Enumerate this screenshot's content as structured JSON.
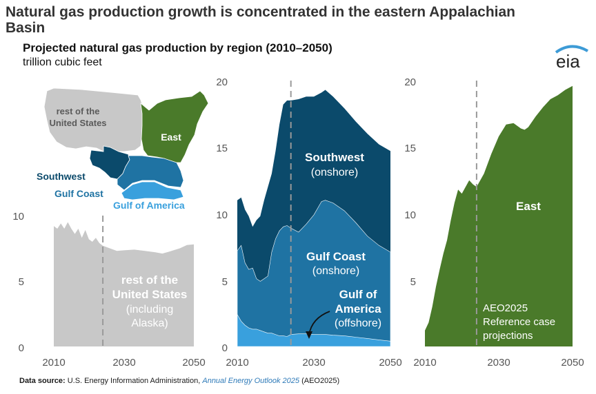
{
  "title": "Natural gas production growth is concentrated in the eastern Appalachian Basin",
  "subtitle": "Projected natural gas production by region (2010–2050)",
  "units": "trillion cubic feet",
  "logo_text": "eia",
  "source": {
    "label": "Data source:",
    "text1": "U.S. Energy Information Administration,",
    "italic": "Annual Energy Outlook 2025",
    "text2": "(AEO2025)"
  },
  "map_labels": {
    "rest": [
      "rest of the",
      "United States"
    ],
    "east": "East",
    "southwest": "Southwest",
    "gulf_coast": "Gulf Coast",
    "gulf_of_america": "Gulf of America"
  },
  "colors": {
    "rest": "#c8c8c8",
    "southwest": "#0b4a6b",
    "gulf_coast": "#1f73a3",
    "gulf_of_america": "#39a0dd",
    "east": "#4a7a2a",
    "dashed": "#999999"
  },
  "chart_data": [
    {
      "type": "area",
      "panel": "rest of United States",
      "x_ticks": [
        "2010",
        "2030",
        "2050"
      ],
      "y_ticks": [
        "0",
        "5",
        "10"
      ],
      "ylim": [
        0,
        10
      ],
      "xlim": [
        2010,
        2050
      ],
      "projection_start": 2024,
      "labels": [
        "rest of the",
        "United States",
        "(including",
        "Alaska)"
      ],
      "series": [
        {
          "key": "rest",
          "x": [
            2010,
            2011,
            2012,
            2013,
            2014,
            2015,
            2016,
            2017,
            2018,
            2019,
            2020,
            2021,
            2022,
            2023,
            2024,
            2026,
            2028,
            2030,
            2033,
            2036,
            2039,
            2041,
            2043,
            2046,
            2048,
            2050
          ],
          "values": [
            9.2,
            9.0,
            9.4,
            9.0,
            9.5,
            9.0,
            8.6,
            9.0,
            8.3,
            8.9,
            8.2,
            8.0,
            8.3,
            7.9,
            7.7,
            7.5,
            7.3,
            7.35,
            7.4,
            7.3,
            7.2,
            7.1,
            7.25,
            7.5,
            7.75,
            7.8
          ]
        }
      ]
    },
    {
      "type": "area",
      "panel": "Southwest, Gulf Coast, Gulf of America",
      "x_ticks": [
        "2010",
        "2030",
        "2050"
      ],
      "y_ticks": [
        "0",
        "5",
        "10",
        "15",
        "20"
      ],
      "ylim": [
        0,
        20
      ],
      "xlim": [
        2010,
        2050
      ],
      "projection_start": 2024,
      "stacked": true,
      "labels": {
        "southwest": [
          "Southwest",
          "(onshore)"
        ],
        "gulf_coast": [
          "Gulf Coast",
          "(onshore)"
        ],
        "gulf_of_america": [
          "Gulf of",
          "America",
          "(offshore)"
        ]
      },
      "x": [
        2010,
        2011,
        2012,
        2013,
        2014,
        2015,
        2016,
        2017,
        2018,
        2019,
        2020,
        2021,
        2022,
        2023,
        2024,
        2026,
        2028,
        2030,
        2032,
        2033,
        2035,
        2038,
        2041,
        2044,
        2047,
        2050
      ],
      "series": [
        {
          "key": "gulf_of_america",
          "values": [
            2.4,
            1.9,
            1.6,
            1.4,
            1.3,
            1.3,
            1.2,
            1.1,
            1.0,
            1.0,
            0.9,
            0.8,
            0.8,
            0.75,
            0.9,
            0.95,
            0.95,
            0.9,
            0.9,
            0.9,
            0.85,
            0.8,
            0.7,
            0.6,
            0.5,
            0.4
          ]
        },
        {
          "key": "gulf_coast",
          "values": [
            7.2,
            7.6,
            6.3,
            5.8,
            5.9,
            5.1,
            4.9,
            5.1,
            5.3,
            7.1,
            8.1,
            8.7,
            9.0,
            9.1,
            8.9,
            8.6,
            9.2,
            9.9,
            10.9,
            11.0,
            10.8,
            10.2,
            9.3,
            8.3,
            7.6,
            7.1
          ]
        },
        {
          "key": "southwest",
          "values": [
            11.0,
            11.2,
            10.3,
            9.8,
            9.0,
            9.5,
            9.8,
            11.0,
            12.0,
            13.0,
            14.7,
            16.7,
            18.2,
            18.5,
            18.5,
            18.6,
            18.8,
            18.8,
            19.1,
            19.3,
            18.8,
            17.9,
            16.9,
            16.0,
            15.2,
            14.7
          ]
        }
      ]
    },
    {
      "type": "area",
      "panel": "East",
      "x_ticks": [
        "2010",
        "2030",
        "2050"
      ],
      "y_ticks": [
        "5",
        "10",
        "15",
        "20"
      ],
      "ylim": [
        0,
        20
      ],
      "xlim": [
        2010,
        2050
      ],
      "projection_start": 2024,
      "labels": {
        "east": "East",
        "note": [
          "AEO2025",
          "Reference case",
          "projections"
        ]
      },
      "series": [
        {
          "key": "east",
          "x": [
            2010,
            2011,
            2012,
            2013,
            2014,
            2015,
            2016,
            2017,
            2018,
            2019,
            2020,
            2021,
            2022,
            2023,
            2024,
            2026,
            2028,
            2030,
            2032,
            2034,
            2036,
            2037,
            2038,
            2040,
            2042,
            2044,
            2046,
            2048,
            2050
          ],
          "values": [
            1.2,
            1.8,
            3.0,
            4.5,
            5.8,
            7.0,
            8.0,
            9.5,
            10.8,
            11.8,
            11.5,
            12.0,
            12.5,
            12.2,
            12.0,
            13.0,
            14.5,
            15.8,
            16.7,
            16.8,
            16.4,
            16.3,
            16.5,
            17.3,
            18.0,
            18.6,
            18.9,
            19.3,
            19.6
          ]
        }
      ]
    }
  ]
}
